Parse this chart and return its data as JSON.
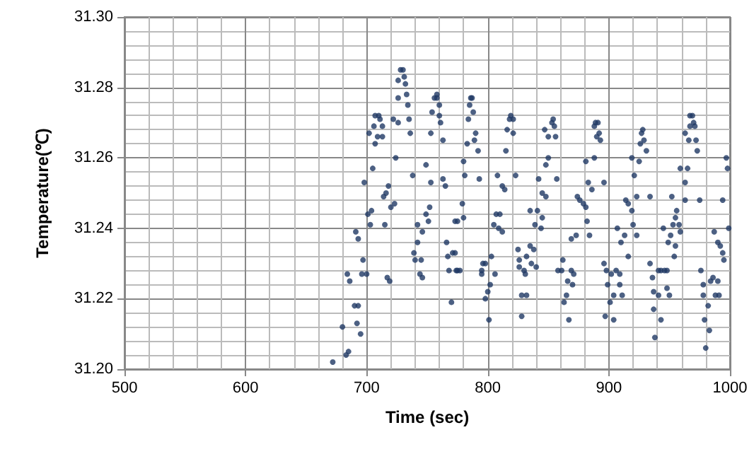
{
  "chart_data": {
    "type": "scatter",
    "xlabel": "Time (sec)",
    "ylabel": "Temperature(℃)",
    "xlim": [
      500,
      1000
    ],
    "xticks": [
      500,
      600,
      700,
      800,
      900,
      1000
    ],
    "ylim": [
      31.2,
      31.3
    ],
    "yticks": [
      {
        "value": 31.2,
        "label": "31.20"
      },
      {
        "value": 31.22,
        "label": "31.22"
      },
      {
        "value": 31.24,
        "label": "31.24"
      },
      {
        "value": 31.26,
        "label": "31.26"
      },
      {
        "value": 31.28,
        "label": "31.28"
      },
      {
        "value": 31.3,
        "label": "31.30"
      }
    ],
    "grid": true,
    "marker": "circle",
    "series": [
      {
        "color": "#1f3864",
        "x": [
          672,
          680,
          683,
          685,
          684,
          686,
          690,
          693,
          692,
          695,
          691,
          693,
          697,
          696,
          700,
          698,
          701,
          704,
          703,
          705,
          702,
          706,
          707,
          707,
          710,
          711,
          709,
          713,
          713,
          715,
          714,
          716,
          718,
          717,
          719,
          720,
          723,
          724,
          722,
          726,
          726,
          726,
          728,
          730,
          731,
          732,
          733,
          734,
          735,
          736,
          738,
          742,
          742,
          739,
          740,
          745,
          744,
          746,
          746,
          749,
          751,
          752,
          749,
          753,
          753,
          754,
          756,
          758,
          758,
          760,
          760,
          761,
          763,
          763,
          765,
          766,
          767,
          768,
          770,
          771,
          773,
          774,
          775,
          777,
          773,
          775,
          779,
          780,
          780,
          781,
          783,
          784,
          785,
          786,
          787,
          788,
          790,
          789,
          792,
          793,
          795,
          795,
          796,
          798,
          798,
          800,
          802,
          801,
          803,
          805,
          806,
          808,
          809,
          807,
          810,
          812,
          814,
          812,
          815,
          816,
          818,
          819,
          821,
          821,
          823,
          825,
          826,
          826,
          828,
          828,
          830,
          832,
          831,
          832,
          835,
          838,
          836,
          840,
          835,
          841,
          839,
          844,
          845,
          842,
          845,
          848,
          848,
          850,
          847,
          850,
          853,
          854,
          855,
          856,
          857,
          858,
          861,
          862,
          863,
          865,
          866,
          869,
          871,
          870,
          867,
          869,
          873,
          874,
          876,
          879,
          881,
          882,
          884,
          881,
          883,
          886,
          888,
          888,
          889,
          890,
          891,
          892,
          893,
          896,
          896,
          898,
          899,
          897,
          901,
          904,
          902,
          904,
          906,
          907,
          909,
          910,
          909,
          911,
          913,
          916,
          914,
          916,
          919,
          920,
          919,
          921,
          923,
          923,
          925,
          926,
          927,
          928,
          929,
          931,
          934,
          934,
          936,
          937,
          937,
          938,
          941,
          941,
          943,
          943,
          945,
          946,
          948,
          948,
          950,
          949,
          951,
          953,
          954,
          955,
          955,
          956,
          958,
          959,
          959,
          963,
          952,
          963,
          963,
          965,
          966,
          967,
          967,
          969,
          970,
          971,
          972,
          973,
          975,
          976,
          978,
          978,
          979,
          980,
          982,
          983,
          984,
          986,
          988,
          990,
          991,
          990,
          992,
          994,
          995,
          987,
          994,
          997,
          998,
          999
        ],
        "values": [
          31.202,
          31.212,
          31.204,
          31.205,
          31.227,
          31.225,
          31.218,
          31.218,
          31.213,
          31.21,
          31.239,
          31.237,
          31.231,
          31.227,
          31.227,
          31.253,
          31.244,
          31.245,
          31.241,
          31.257,
          31.267,
          31.269,
          31.264,
          31.272,
          31.272,
          31.271,
          31.266,
          31.269,
          31.266,
          31.241,
          31.249,
          31.25,
          31.252,
          31.226,
          31.225,
          31.246,
          31.247,
          31.26,
          31.271,
          31.27,
          31.277,
          31.282,
          31.285,
          31.285,
          31.283,
          31.281,
          31.278,
          31.275,
          31.271,
          31.267,
          31.255,
          31.241,
          31.236,
          31.233,
          31.231,
          31.231,
          31.227,
          31.226,
          31.239,
          31.244,
          31.242,
          31.246,
          31.258,
          31.253,
          31.267,
          31.273,
          31.277,
          31.278,
          31.277,
          31.275,
          31.272,
          31.27,
          31.265,
          31.254,
          31.252,
          31.236,
          31.232,
          31.228,
          31.219,
          31.233,
          31.233,
          31.228,
          31.228,
          31.228,
          31.242,
          31.242,
          31.247,
          31.243,
          31.259,
          31.255,
          31.264,
          31.271,
          31.275,
          31.277,
          31.277,
          31.273,
          31.267,
          31.265,
          31.262,
          31.254,
          31.228,
          31.227,
          31.23,
          31.23,
          31.22,
          31.222,
          31.224,
          31.214,
          31.232,
          31.241,
          31.227,
          31.255,
          31.24,
          31.244,
          31.244,
          31.252,
          31.251,
          31.239,
          31.262,
          31.268,
          31.271,
          31.272,
          31.271,
          31.267,
          31.255,
          31.234,
          31.231,
          31.229,
          31.221,
          31.215,
          31.228,
          31.221,
          31.227,
          31.232,
          31.235,
          31.234,
          31.23,
          31.229,
          31.245,
          31.245,
          31.241,
          31.24,
          31.243,
          31.254,
          31.25,
          31.249,
          31.258,
          31.26,
          31.268,
          31.266,
          31.27,
          31.271,
          31.269,
          31.266,
          31.254,
          31.228,
          31.228,
          31.231,
          31.219,
          31.221,
          31.225,
          31.228,
          31.227,
          31.224,
          31.214,
          31.237,
          31.238,
          31.249,
          31.248,
          31.247,
          31.246,
          31.242,
          31.238,
          31.259,
          31.253,
          31.251,
          31.26,
          31.269,
          31.27,
          31.266,
          31.27,
          31.267,
          31.265,
          31.253,
          31.23,
          31.228,
          31.224,
          31.215,
          31.219,
          31.221,
          31.227,
          31.214,
          31.228,
          31.24,
          31.227,
          31.236,
          31.224,
          31.221,
          31.238,
          31.232,
          31.248,
          31.247,
          31.245,
          31.241,
          31.26,
          31.255,
          31.249,
          31.238,
          31.259,
          31.264,
          31.267,
          31.268,
          31.265,
          31.262,
          31.249,
          31.23,
          31.226,
          31.222,
          31.217,
          31.209,
          31.228,
          31.221,
          31.214,
          31.228,
          31.24,
          31.228,
          31.228,
          31.223,
          31.221,
          31.236,
          31.238,
          31.241,
          31.232,
          31.235,
          31.243,
          31.245,
          31.241,
          31.239,
          31.257,
          31.253,
          31.249,
          31.248,
          31.267,
          31.257,
          31.265,
          31.269,
          31.272,
          31.272,
          31.27,
          31.269,
          31.265,
          31.262,
          31.248,
          31.228,
          31.224,
          31.221,
          31.214,
          31.206,
          31.218,
          31.211,
          31.225,
          31.226,
          31.221,
          31.225,
          31.221,
          31.236,
          31.235,
          31.233,
          31.231,
          31.239,
          31.248,
          31.26,
          31.257,
          31.24
        ]
      }
    ]
  }
}
